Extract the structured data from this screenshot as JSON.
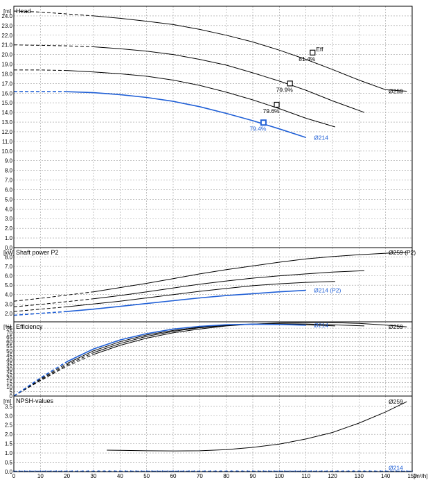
{
  "colors": {
    "black_curve": "#000000",
    "blue_curve": "#1f5fd6",
    "grid": "#9a9a9a",
    "frame": "#000000"
  },
  "x_axis": {
    "unit_label": "[m³/h]",
    "range": [
      0,
      150
    ],
    "ticks": [
      0,
      10,
      20,
      30,
      40,
      50,
      60,
      70,
      80,
      90,
      100,
      110,
      120,
      130,
      140,
      150
    ]
  },
  "panels": {
    "head": {
      "title": "Head",
      "unit": "[m]",
      "ylim": [
        0,
        25
      ],
      "ticks": [
        0,
        1,
        2,
        3,
        4,
        5,
        6,
        7,
        8,
        9,
        10,
        11,
        12,
        13,
        14,
        15,
        16,
        17,
        18,
        19,
        20,
        21,
        22,
        23,
        24
      ],
      "tick_labels": [
        "0.0",
        "1.0",
        "2.0",
        "3.0",
        "4.0",
        "5.0",
        "6.0",
        "7.0",
        "8.0",
        "9.0",
        "10.0",
        "11.0",
        "12.0",
        "13.0",
        "14.0",
        "15.0",
        "16.0",
        "17.0",
        "18.0",
        "19.0",
        "20.0",
        "21.0",
        "22.0",
        "23.0",
        "24.0"
      ]
    },
    "power": {
      "title": "Shaft power P2",
      "unit": "[kW]",
      "ylim": [
        1.1,
        9.0
      ],
      "ticks": [
        2,
        3,
        4,
        5,
        6,
        7,
        8
      ],
      "tick_labels": [
        "2.0",
        "3.0",
        "4.0",
        "5.0",
        "6.0",
        "7.0",
        "8.0"
      ]
    },
    "eff": {
      "title": "Efficiency",
      "unit": "[%]",
      "ylim": [
        0,
        82
      ],
      "ticks": [
        0,
        5,
        10,
        15,
        20,
        25,
        30,
        35,
        40,
        45,
        50,
        55,
        60,
        65,
        70,
        75
      ],
      "tick_labels": [
        "0",
        "5",
        "10",
        "15",
        "20",
        "25",
        "30",
        "35",
        "40",
        "45",
        "50",
        "55",
        "60",
        "65",
        "70",
        "75"
      ]
    },
    "npsh": {
      "title": "NPSH-values",
      "unit": "[m]",
      "ylim": [
        0,
        4.05
      ],
      "ticks": [
        0,
        0.5,
        1,
        1.5,
        2,
        2.5,
        3,
        3.5
      ],
      "tick_labels": [
        "0.0",
        "0.5",
        "1.0",
        "1.5",
        "2.0",
        "2.5",
        "3.0",
        "3.5"
      ]
    }
  },
  "chart_data": [
    {
      "type": "line",
      "title": "Head",
      "ylabel": "[m]",
      "xlabel": "[m³/h]",
      "xlim": [
        0,
        150
      ],
      "ylim": [
        0,
        25
      ],
      "series": [
        {
          "name": "Ø259",
          "color": "#000000",
          "dashed_until_x": 32,
          "x": [
            0,
            10,
            20,
            30,
            40,
            50,
            60,
            70,
            80,
            90,
            100,
            110,
            120,
            130,
            140,
            148
          ],
          "y": [
            24.5,
            24.4,
            24.2,
            24.0,
            23.75,
            23.45,
            23.1,
            22.6,
            22.0,
            21.3,
            20.45,
            19.5,
            18.45,
            17.35,
            16.35,
            16.2
          ]
        },
        {
          "name": "",
          "color": "#000000",
          "dashed_until_x": 30,
          "x": [
            0,
            10,
            20,
            30,
            40,
            50,
            60,
            70,
            80,
            90,
            100,
            110,
            120,
            130,
            132
          ],
          "y": [
            21.0,
            20.95,
            20.9,
            20.8,
            20.6,
            20.35,
            20.0,
            19.5,
            18.9,
            18.1,
            17.25,
            16.3,
            15.2,
            14.2,
            14.0
          ]
        },
        {
          "name": "",
          "color": "#000000",
          "dashed_until_x": 28,
          "x": [
            0,
            10,
            20,
            30,
            40,
            50,
            60,
            70,
            80,
            90,
            100,
            110,
            121
          ],
          "y": [
            18.4,
            18.4,
            18.35,
            18.2,
            18.0,
            17.75,
            17.35,
            16.8,
            16.1,
            15.3,
            14.4,
            13.4,
            12.5
          ]
        },
        {
          "name": "Ø214",
          "color": "#1f5fd6",
          "dashed_until_x": 24,
          "x": [
            0,
            10,
            20,
            30,
            40,
            50,
            60,
            70,
            80,
            90,
            100,
            110
          ],
          "y": [
            16.15,
            16.15,
            16.15,
            16.05,
            15.85,
            15.55,
            15.15,
            14.6,
            13.9,
            13.15,
            12.3,
            11.4
          ]
        }
      ],
      "duty_points": [
        {
          "x": 112.5,
          "y": 20.2,
          "label": "81.4%",
          "tag": "Eff"
        },
        {
          "x": 104,
          "y": 17.0,
          "label": "79.9%"
        },
        {
          "x": 99,
          "y": 14.8,
          "label": "79.6%"
        },
        {
          "x": 94,
          "y": 12.95,
          "label": "79.4%"
        }
      ],
      "curve_labels": [
        {
          "text": "Ø259",
          "x": 150,
          "y": 16.2,
          "color": "#000000"
        },
        {
          "text": "Ø214",
          "x": 113,
          "y": 11.4,
          "color": "#1f5fd6"
        }
      ]
    },
    {
      "type": "line",
      "title": "Shaft power P2",
      "ylabel": "[kW]",
      "xlabel": "[m³/h]",
      "xlim": [
        0,
        150
      ],
      "ylim": [
        1.1,
        9.0
      ],
      "series": [
        {
          "name": "Ø259 (P2)",
          "color": "#000000",
          "dashed_until_x": 33,
          "x": [
            0,
            10,
            20,
            30,
            40,
            50,
            60,
            70,
            80,
            90,
            100,
            110,
            120,
            130,
            140,
            148
          ],
          "y": [
            3.3,
            3.6,
            3.95,
            4.3,
            4.75,
            5.2,
            5.7,
            6.2,
            6.65,
            7.05,
            7.45,
            7.8,
            8.05,
            8.25,
            8.4,
            8.5
          ]
        },
        {
          "name": "",
          "color": "#000000",
          "dashed_until_x": 31,
          "x": [
            0,
            10,
            20,
            30,
            40,
            50,
            60,
            70,
            80,
            90,
            100,
            110,
            120,
            132
          ],
          "y": [
            2.7,
            2.95,
            3.25,
            3.55,
            3.9,
            4.3,
            4.7,
            5.1,
            5.45,
            5.75,
            6.0,
            6.2,
            6.4,
            6.55
          ]
        },
        {
          "name": "",
          "color": "#000000",
          "dashed_until_x": 28,
          "x": [
            0,
            10,
            20,
            30,
            40,
            50,
            60,
            70,
            80,
            90,
            100,
            110,
            121
          ],
          "y": [
            2.2,
            2.45,
            2.7,
            3.0,
            3.3,
            3.65,
            4.0,
            4.35,
            4.65,
            4.95,
            5.15,
            5.3,
            5.4
          ]
        },
        {
          "name": "Ø214 (P2)",
          "color": "#1f5fd6",
          "dashed_until_x": 24,
          "x": [
            0,
            10,
            20,
            30,
            40,
            50,
            60,
            70,
            80,
            90,
            100,
            110
          ],
          "y": [
            1.8,
            2.0,
            2.2,
            2.45,
            2.75,
            3.05,
            3.35,
            3.65,
            3.9,
            4.1,
            4.3,
            4.45
          ]
        }
      ],
      "curve_labels": [
        {
          "text": "Ø259 (P2)",
          "x": 150,
          "y": 8.5,
          "color": "#000000"
        },
        {
          "text": "Ø214 (P2)",
          "x": 113,
          "y": 4.45,
          "color": "#1f5fd6"
        }
      ]
    },
    {
      "type": "line",
      "title": "Efficiency",
      "ylabel": "[%]",
      "xlabel": "[m³/h]",
      "xlim": [
        0,
        150
      ],
      "ylim": [
        0,
        82
      ],
      "series": [
        {
          "name": "Ø259",
          "color": "#000000",
          "dashed_until_x": 32,
          "x": [
            0,
            10,
            20,
            30,
            40,
            50,
            60,
            70,
            80,
            90,
            100,
            110,
            120,
            130,
            140,
            148
          ],
          "y": [
            0,
            17,
            33,
            46,
            56,
            64,
            70,
            74,
            77.5,
            79.5,
            80.8,
            81.4,
            81.2,
            80.2,
            78.5,
            76.5
          ]
        },
        {
          "name": "",
          "color": "#000000",
          "dashed_until_x": 30,
          "x": [
            0,
            10,
            20,
            30,
            40,
            50,
            60,
            70,
            80,
            90,
            100,
            110,
            120,
            132
          ],
          "y": [
            0,
            18,
            34.5,
            48,
            58,
            66,
            71.5,
            75.5,
            78,
            79.5,
            79.9,
            79.6,
            78.8,
            77.5
          ]
        },
        {
          "name": "",
          "color": "#000000",
          "dashed_until_x": 28,
          "x": [
            0,
            10,
            20,
            30,
            40,
            50,
            60,
            70,
            80,
            90,
            100,
            110,
            121
          ],
          "y": [
            0,
            19,
            36,
            50,
            60,
            67.5,
            72.5,
            76,
            78.5,
            79.6,
            79.6,
            78.8,
            77.5
          ]
        },
        {
          "name": "Ø214",
          "color": "#1f5fd6",
          "dashed_until_x": 24,
          "x": [
            0,
            10,
            20,
            30,
            40,
            50,
            60,
            70,
            80,
            90,
            100,
            110
          ],
          "y": [
            0,
            20,
            38,
            52,
            62,
            69,
            74,
            77,
            78.8,
            79.4,
            79.1,
            78.3
          ]
        }
      ],
      "curve_labels": [
        {
          "text": "Ø259",
          "x": 150,
          "y": 76.5,
          "color": "#000000"
        },
        {
          "text": "Ø214",
          "x": 113,
          "y": 78.3,
          "color": "#1f5fd6"
        }
      ]
    },
    {
      "type": "line",
      "title": "NPSH-values",
      "ylabel": "[m]",
      "xlabel": "[m³/h]",
      "xlim": [
        0,
        150
      ],
      "ylim": [
        0,
        4.05
      ],
      "series": [
        {
          "name": "Ø259",
          "color": "#000000",
          "dashed_until_x": 0,
          "x": [
            35,
            40,
            50,
            60,
            70,
            80,
            90,
            100,
            110,
            120,
            130,
            140,
            148
          ],
          "y": [
            1.15,
            1.14,
            1.12,
            1.11,
            1.12,
            1.18,
            1.3,
            1.48,
            1.75,
            2.1,
            2.6,
            3.2,
            3.75
          ]
        },
        {
          "name": "Ø214",
          "color": "#1f5fd6",
          "dashed_until_x": 150,
          "x": [
            0,
            150
          ],
          "y": [
            0.02,
            0.02
          ]
        }
      ],
      "curve_labels": [
        {
          "text": "Ø259",
          "x": 150,
          "y": 3.75,
          "color": "#000000"
        },
        {
          "text": "Ø214",
          "x": 150,
          "y": 0.2,
          "color": "#1f5fd6"
        }
      ]
    }
  ]
}
